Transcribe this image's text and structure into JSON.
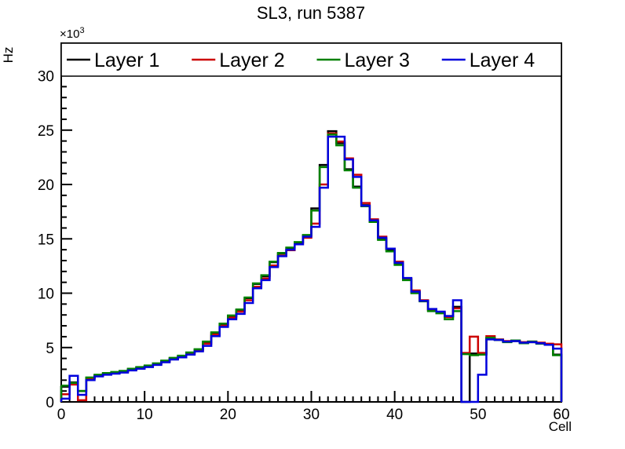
{
  "page": {
    "title": "SL3, run 5387"
  },
  "axes": {
    "y_label": "Hz",
    "y_exponent": {
      "prefix": "×10",
      "sup": "3"
    },
    "x_label": "Cell",
    "y_tick_labels": [
      0,
      5,
      10,
      15,
      20,
      25,
      30
    ],
    "x_tick_labels": [
      0,
      10,
      20,
      30,
      40,
      50,
      60
    ]
  },
  "chart_data": {
    "type": "step-histogram",
    "title": "SL3, run 5387",
    "xlabel": "Cell",
    "ylabel": "Hz",
    "xlim": [
      0,
      60
    ],
    "ylim": [
      0,
      33000
    ],
    "y_scale_exponent": 3,
    "bin_width": 1,
    "bin_start": 0,
    "n_bins": 60,
    "grid": false,
    "legend_position": "top-band-inside-frame",
    "frame_color": "#000000",
    "background_color": "#ffffff",
    "series": [
      {
        "name": "Layer 1",
        "color": "#000000",
        "values": [
          1400,
          1800,
          1000,
          2200,
          2450,
          2600,
          2700,
          2800,
          3000,
          3150,
          3300,
          3500,
          3750,
          4000,
          4200,
          4500,
          4800,
          5500,
          6350,
          7150,
          7900,
          8450,
          9550,
          10850,
          11550,
          12850,
          13650,
          14150,
          14650,
          15300,
          17800,
          21800,
          24900,
          23800,
          21400,
          19800,
          18100,
          16600,
          15000,
          14000,
          12700,
          11300,
          10100,
          9300,
          8400,
          8200,
          7900,
          8750,
          0,
          4450,
          4400,
          5850,
          5700,
          5550,
          5600,
          5450,
          5500,
          5400,
          5250,
          4350
        ]
      },
      {
        "name": "Layer 2",
        "color": "#cc0000",
        "values": [
          700,
          1600,
          150,
          2150,
          2400,
          2550,
          2650,
          2750,
          2950,
          3100,
          3250,
          3450,
          3700,
          3950,
          4150,
          4400,
          4700,
          5350,
          6200,
          7000,
          7750,
          8300,
          9350,
          10600,
          11350,
          12550,
          13450,
          13950,
          14500,
          15100,
          16400,
          20000,
          24700,
          23950,
          22400,
          20900,
          18300,
          16800,
          15200,
          14100,
          12900,
          11350,
          10250,
          9350,
          8450,
          8250,
          7800,
          8600,
          4500,
          6000,
          4500,
          6050,
          5750,
          5600,
          5650,
          5500,
          5550,
          5450,
          5350,
          5300
        ]
      },
      {
        "name": "Layer 3",
        "color": "#008000",
        "values": [
          1500,
          1750,
          1000,
          2250,
          2500,
          2650,
          2750,
          2850,
          3050,
          3200,
          3350,
          3550,
          3800,
          4050,
          4250,
          4550,
          4850,
          5550,
          6400,
          7200,
          7950,
          8500,
          9600,
          10900,
          11650,
          12900,
          13700,
          14200,
          14700,
          15350,
          17600,
          21600,
          24600,
          23600,
          21300,
          19700,
          18000,
          16550,
          14900,
          13850,
          12600,
          11200,
          10000,
          9250,
          8350,
          8150,
          7600,
          8350,
          4400,
          4300,
          4350,
          5900,
          5700,
          5500,
          5650,
          5400,
          5550,
          5350,
          5250,
          4300
        ]
      },
      {
        "name": "Layer 4",
        "color": "#0000dd",
        "values": [
          300,
          2400,
          650,
          2000,
          2350,
          2500,
          2600,
          2700,
          2900,
          3050,
          3200,
          3400,
          3650,
          3900,
          4100,
          4350,
          4650,
          5150,
          6050,
          6900,
          7600,
          8100,
          9100,
          10450,
          11200,
          12400,
          13400,
          14000,
          14500,
          15200,
          16100,
          19700,
          24400,
          24400,
          22300,
          20700,
          18050,
          16700,
          15100,
          14100,
          12800,
          11400,
          10150,
          9300,
          8550,
          8300,
          7900,
          9350,
          0,
          0,
          2500,
          5750,
          5700,
          5550,
          5600,
          5450,
          5500,
          5400,
          5250,
          4900
        ]
      }
    ]
  }
}
